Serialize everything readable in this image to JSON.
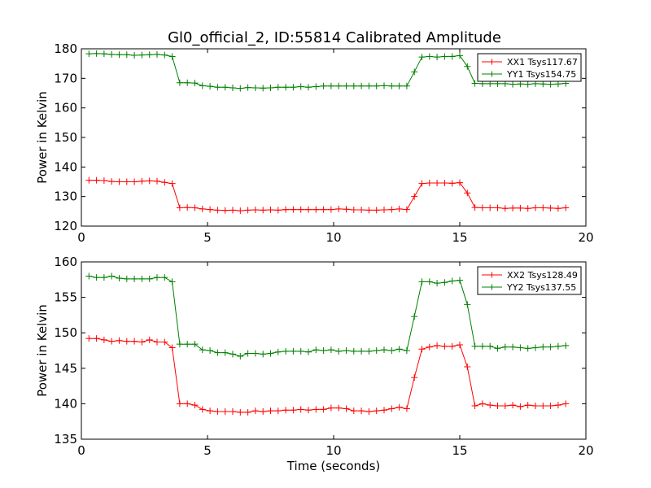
{
  "figure": {
    "title": "Gl0_official_2, ID:55814 Calibrated Amplitude"
  },
  "chart_data": [
    {
      "type": "line",
      "title": "Gl0_official_2, ID:55814 Calibrated Amplitude",
      "xlabel": "",
      "ylabel": "Power in Kelvin",
      "xlim": [
        0,
        20
      ],
      "ylim": [
        120,
        180
      ],
      "xticks": [
        0,
        5,
        10,
        15,
        20
      ],
      "yticks": [
        120,
        130,
        140,
        150,
        160,
        170,
        180
      ],
      "grid": false,
      "legend_position": "top-right",
      "x": [
        0.3,
        0.6,
        0.9,
        1.2,
        1.5,
        1.8,
        2.1,
        2.4,
        2.7,
        3.0,
        3.3,
        3.6,
        3.9,
        4.2,
        4.5,
        4.8,
        5.1,
        5.4,
        5.7,
        6.0,
        6.3,
        6.6,
        6.9,
        7.2,
        7.5,
        7.8,
        8.1,
        8.4,
        8.7,
        9.0,
        9.3,
        9.6,
        9.9,
        10.2,
        10.5,
        10.8,
        11.1,
        11.4,
        11.7,
        12.0,
        12.3,
        12.6,
        12.9,
        13.2,
        13.5,
        13.8,
        14.1,
        14.4,
        14.7,
        15.0,
        15.3,
        15.6,
        15.9,
        16.2,
        16.5,
        16.8,
        17.1,
        17.4,
        17.7,
        18.0,
        18.3,
        18.6,
        18.9,
        19.2
      ],
      "series": [
        {
          "name": "XX1 Tsys117.67",
          "color": "#ff0000",
          "values": [
            135.5,
            135.5,
            135.4,
            135.1,
            135.0,
            135.0,
            135.0,
            135.2,
            135.3,
            135.2,
            134.8,
            134.4,
            126.2,
            126.3,
            126.2,
            125.8,
            125.6,
            125.4,
            125.3,
            125.4,
            125.2,
            125.4,
            125.5,
            125.4,
            125.5,
            125.4,
            125.6,
            125.6,
            125.6,
            125.6,
            125.6,
            125.6,
            125.6,
            125.8,
            125.7,
            125.5,
            125.5,
            125.4,
            125.4,
            125.5,
            125.6,
            125.8,
            125.6,
            130.0,
            134.4,
            134.6,
            134.6,
            134.6,
            134.5,
            134.7,
            131.2,
            126.3,
            126.2,
            126.2,
            126.2,
            126.0,
            126.1,
            126.1,
            126.0,
            126.2,
            126.2,
            126.1,
            126.0,
            126.2
          ]
        },
        {
          "name": "YY1 Tsys154.75",
          "color": "#008000",
          "values": [
            178.3,
            178.4,
            178.3,
            178.1,
            178.0,
            178.0,
            177.8,
            177.9,
            178.0,
            178.1,
            177.9,
            177.4,
            168.5,
            168.5,
            168.4,
            167.5,
            167.3,
            167.0,
            167.0,
            166.8,
            166.6,
            166.9,
            166.8,
            166.7,
            166.8,
            167.0,
            167.0,
            167.0,
            167.2,
            167.0,
            167.2,
            167.4,
            167.4,
            167.4,
            167.4,
            167.4,
            167.4,
            167.4,
            167.4,
            167.5,
            167.4,
            167.4,
            167.4,
            172.2,
            177.2,
            177.4,
            177.2,
            177.4,
            177.4,
            177.7,
            174.0,
            168.3,
            168.2,
            168.2,
            168.2,
            168.2,
            168.0,
            168.1,
            168.0,
            168.2,
            168.1,
            168.0,
            168.1,
            168.3
          ]
        }
      ]
    },
    {
      "type": "line",
      "title": "",
      "xlabel": "Time (seconds)",
      "ylabel": "Power in Kelvin",
      "xlim": [
        0,
        20
      ],
      "ylim": [
        135,
        160
      ],
      "xticks": [
        0,
        5,
        10,
        15,
        20
      ],
      "yticks": [
        135,
        140,
        145,
        150,
        155,
        160
      ],
      "grid": false,
      "legend_position": "top-right",
      "x": [
        0.3,
        0.6,
        0.9,
        1.2,
        1.5,
        1.8,
        2.1,
        2.4,
        2.7,
        3.0,
        3.3,
        3.6,
        3.9,
        4.2,
        4.5,
        4.8,
        5.1,
        5.4,
        5.7,
        6.0,
        6.3,
        6.6,
        6.9,
        7.2,
        7.5,
        7.8,
        8.1,
        8.4,
        8.7,
        9.0,
        9.3,
        9.6,
        9.9,
        10.2,
        10.5,
        10.8,
        11.1,
        11.4,
        11.7,
        12.0,
        12.3,
        12.6,
        12.9,
        13.2,
        13.5,
        13.8,
        14.1,
        14.4,
        14.7,
        15.0,
        15.3,
        15.6,
        15.9,
        16.2,
        16.5,
        16.8,
        17.1,
        17.4,
        17.7,
        18.0,
        18.3,
        18.6,
        18.9,
        19.2
      ],
      "series": [
        {
          "name": "XX2 Tsys128.49",
          "color": "#ff0000",
          "values": [
            149.2,
            149.2,
            149.0,
            148.8,
            148.9,
            148.8,
            148.8,
            148.7,
            149.0,
            148.7,
            148.7,
            147.9,
            140.0,
            140.0,
            139.8,
            139.2,
            139.0,
            138.9,
            138.9,
            138.9,
            138.8,
            138.8,
            139.0,
            138.9,
            139.0,
            139.0,
            139.1,
            139.1,
            139.2,
            139.1,
            139.2,
            139.2,
            139.4,
            139.4,
            139.3,
            139.0,
            139.0,
            138.9,
            139.0,
            139.1,
            139.3,
            139.5,
            139.3,
            143.7,
            147.7,
            148.0,
            148.2,
            148.1,
            148.1,
            148.3,
            145.2,
            139.7,
            140.0,
            139.8,
            139.7,
            139.7,
            139.8,
            139.6,
            139.8,
            139.7,
            139.7,
            139.7,
            139.8,
            140.0
          ]
        },
        {
          "name": "YY2 Tsys137.55",
          "color": "#008000",
          "values": [
            158.0,
            157.8,
            157.8,
            158.0,
            157.7,
            157.6,
            157.6,
            157.6,
            157.6,
            157.8,
            157.8,
            157.2,
            148.4,
            148.4,
            148.4,
            147.6,
            147.5,
            147.2,
            147.2,
            147.0,
            146.7,
            147.1,
            147.1,
            147.0,
            147.1,
            147.3,
            147.4,
            147.4,
            147.4,
            147.3,
            147.6,
            147.5,
            147.6,
            147.4,
            147.5,
            147.4,
            147.4,
            147.4,
            147.5,
            147.6,
            147.5,
            147.7,
            147.5,
            152.3,
            157.2,
            157.2,
            157.0,
            157.1,
            157.3,
            157.4,
            154.0,
            148.1,
            148.1,
            148.1,
            147.8,
            148.0,
            148.0,
            147.9,
            147.8,
            147.9,
            148.0,
            148.0,
            148.1,
            148.2
          ]
        }
      ]
    }
  ]
}
